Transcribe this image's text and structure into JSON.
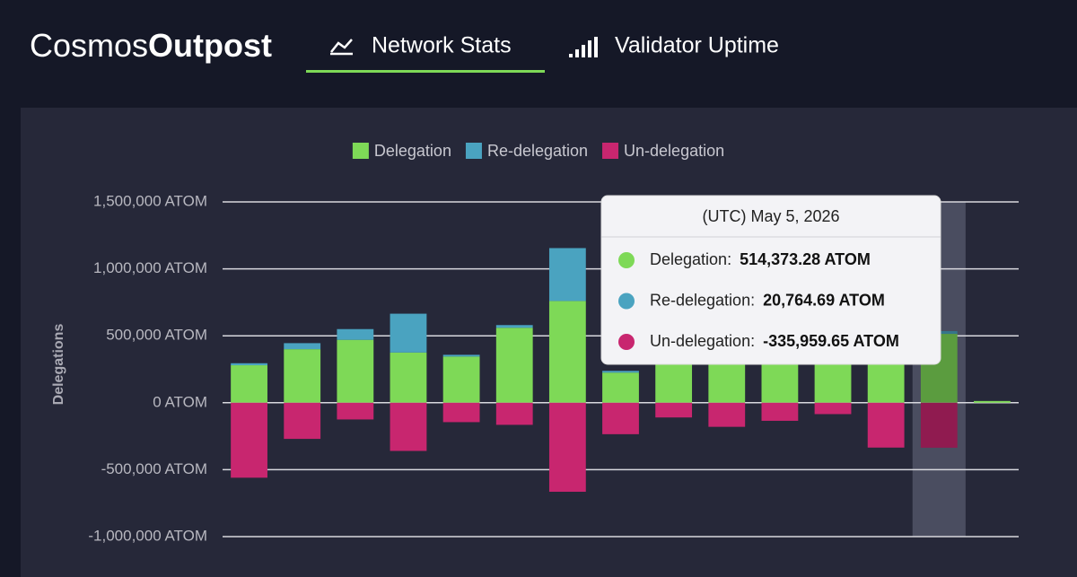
{
  "header": {
    "brand_light": "Cosmos",
    "brand_bold": "Outpost",
    "nav": [
      "Network Stats",
      "Validator Uptime"
    ]
  },
  "chart_data": {
    "type": "stacked_bar",
    "ylabel": "Delegations",
    "categories": [
      null,
      null,
      null,
      null,
      null,
      null,
      null,
      null,
      null,
      null,
      null,
      null,
      null,
      null,
      null
    ],
    "series": [
      {
        "name": "Delegation",
        "color": "#7ed957",
        "values": [
          280000,
          400000,
          470000,
          375000,
          345000,
          560000,
          760000,
          225000,
          400000,
          360000,
          360000,
          380000,
          345000,
          514373.28,
          13000
        ],
        "value_labels": [
          null,
          null,
          null,
          null,
          null,
          null,
          null,
          null,
          null,
          null,
          null,
          null,
          null,
          "514,373.28 ATOM",
          null
        ]
      },
      {
        "name": "Re-delegation",
        "color": "#4aa3c0",
        "values": [
          15000,
          45000,
          80000,
          290000,
          13000,
          20000,
          395000,
          13000,
          15000,
          15000,
          15000,
          15000,
          15000,
          20764.69,
          0
        ],
        "value_labels": [
          null,
          null,
          null,
          null,
          null,
          null,
          null,
          null,
          null,
          null,
          null,
          null,
          null,
          "20,764.69 ATOM",
          null
        ]
      },
      {
        "name": "Un-delegation",
        "color": "#c8266f",
        "values": [
          -560000,
          -270000,
          -125000,
          -360000,
          -145000,
          -165000,
          -665000,
          -235000,
          -110000,
          -180000,
          -135000,
          -85000,
          -335000,
          -335959.65,
          0
        ],
        "value_labels": [
          null,
          null,
          null,
          null,
          null,
          null,
          null,
          null,
          null,
          null,
          null,
          null,
          null,
          "-335,959.65 ATOM",
          null
        ]
      }
    ],
    "ylim": [
      -1000000,
      1500000
    ],
    "yticks": [
      {
        "value": -1000000,
        "label": "-1,000,000 ATOM"
      },
      {
        "value": -500000,
        "label": "-500,000 ATOM"
      },
      {
        "value": 0,
        "label": "0 ATOM"
      },
      {
        "value": 500000,
        "label": "500,000 ATOM"
      },
      {
        "value": 1000000,
        "label": "1,000,000 ATOM"
      },
      {
        "value": 1500000,
        "label": "1,500,000 ATOM"
      }
    ],
    "grid": true,
    "legend": "top",
    "tooltip": {
      "title": "(UTC) May 5, 2026",
      "labels": [
        "Delegation:",
        "Re-delegation:",
        "Un-delegation:"
      ]
    }
  }
}
